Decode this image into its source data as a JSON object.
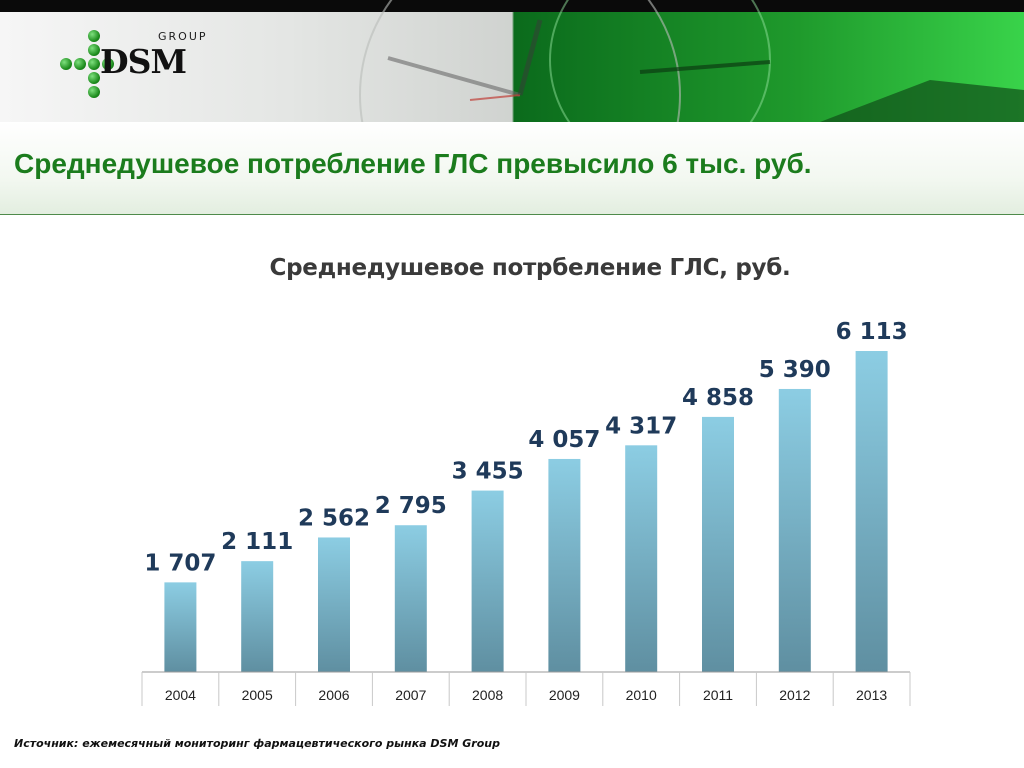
{
  "header": {
    "logo": {
      "group": "GROUP",
      "brand": "DSM"
    }
  },
  "page": {
    "title": "Среднедушевое потребление ГЛС превысило 6 тыс. руб.",
    "source": "Источник: ежемесячный мониторинг фармацевтического рынка DSM Group"
  },
  "colors": {
    "title": "#1b7c1d",
    "bar_top": "#8ccde3",
    "bar_bottom": "#5f8fa1",
    "label": "#1f3a5a"
  },
  "chart_data": {
    "type": "bar",
    "title": "Среднедушевое потрбеление ГЛС, руб.",
    "categories": [
      "2004",
      "2005",
      "2006",
      "2007",
      "2008",
      "2009",
      "2010",
      "2011",
      "2012",
      "2013"
    ],
    "values": [
      1707,
      2111,
      2562,
      2795,
      3455,
      4057,
      4317,
      4858,
      5390,
      6113
    ],
    "value_labels": [
      "1 707",
      "2 111",
      "2 562",
      "2 795",
      "3 455",
      "4 057",
      "4 317",
      "4 858",
      "5 390",
      "6 113"
    ],
    "xlabel": "",
    "ylabel": "",
    "ylim": [
      0,
      6113
    ],
    "grid": false,
    "legend": "none"
  }
}
